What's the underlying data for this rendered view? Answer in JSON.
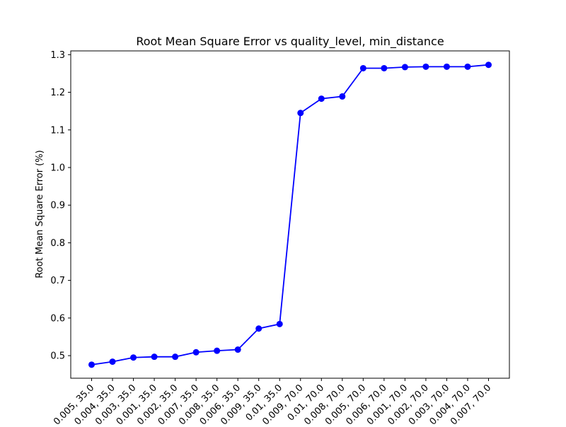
{
  "chart_data": {
    "type": "line",
    "title": "Root Mean Square Error vs quality_level, min_distance",
    "xlabel": "",
    "ylabel": "Root Mean Square Error (%)",
    "ylim": [
      0.44,
      1.31
    ],
    "yticks": [
      "0.5",
      "0.6",
      "0.7",
      "0.8",
      "0.9",
      "1.0",
      "1.1",
      "1.2",
      "1.3"
    ],
    "grid": false,
    "categories": [
      "0.005, 35.0",
      "0.004, 35.0",
      "0.003, 35.0",
      "0.001, 35.0",
      "0.002, 35.0",
      "0.007, 35.0",
      "0.008, 35.0",
      "0.006, 35.0",
      "0.009, 35.0",
      "0.01, 35.0",
      "0.009, 70.0",
      "0.01, 70.0",
      "0.008, 70.0",
      "0.005, 70.0",
      "0.006, 70.0",
      "0.001, 70.0",
      "0.002, 70.0",
      "0.003, 70.0",
      "0.004, 70.0",
      "0.007, 70.0"
    ],
    "series": [
      {
        "color": "#0000ff",
        "values": [
          0.476,
          0.484,
          0.495,
          0.497,
          0.497,
          0.509,
          0.513,
          0.516,
          0.572,
          0.584,
          1.145,
          1.183,
          1.189,
          1.264,
          1.264,
          1.267,
          1.268,
          1.268,
          1.268,
          1.273
        ]
      }
    ]
  }
}
